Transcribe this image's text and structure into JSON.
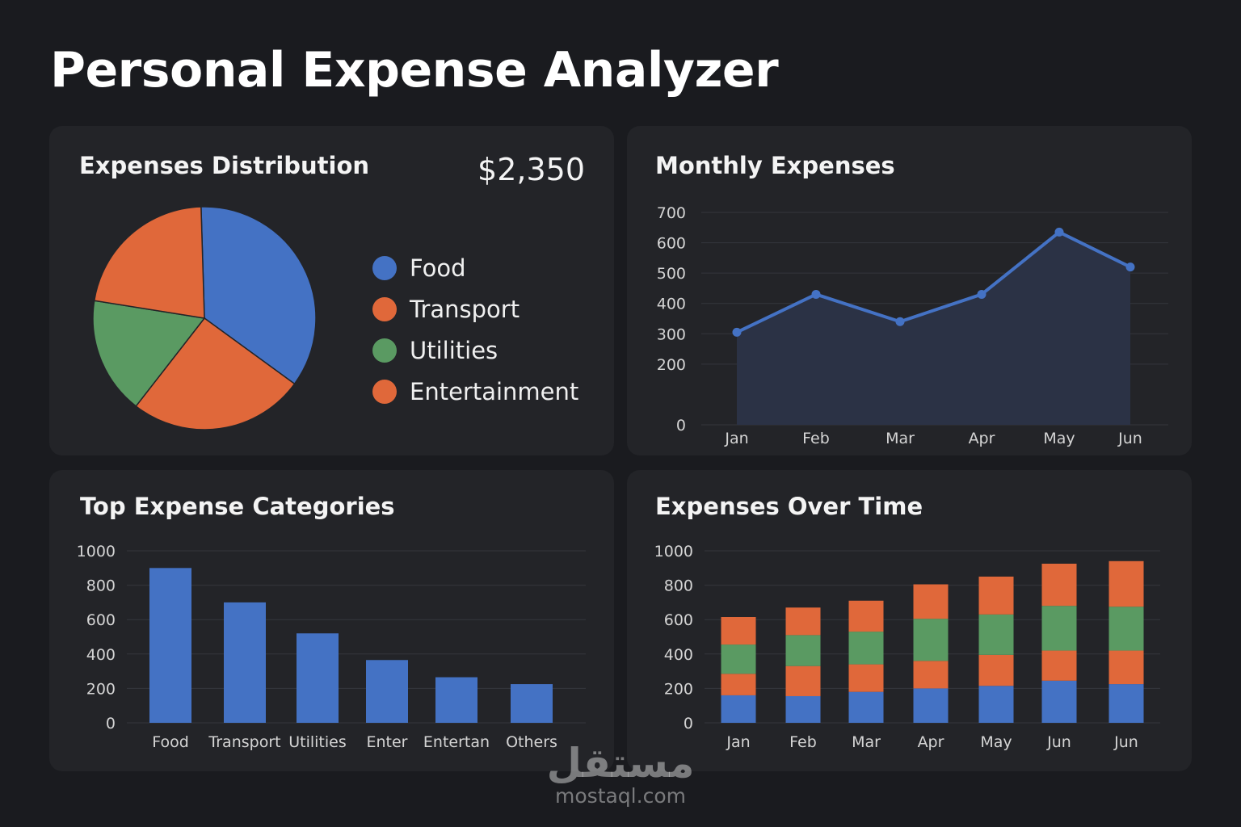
{
  "page": {
    "title": "Personal Expense Analyzer"
  },
  "distribution": {
    "title": "Expenses Distribution",
    "total": "$2,350",
    "legend": [
      {
        "label": "Food",
        "color": "#4472c4"
      },
      {
        "label": "Transport",
        "color": "#e0683a"
      },
      {
        "label": "Utilities",
        "color": "#5a9a62"
      },
      {
        "label": "Entertainment",
        "color": "#e0683a"
      }
    ]
  },
  "monthly": {
    "title": "Monthly Expenses"
  },
  "top_categories": {
    "title": "Top Expense Categories"
  },
  "over_time": {
    "title": "Expenses Over Time"
  },
  "watermark": {
    "arabic": "مستقل",
    "url": "mostaql.com"
  },
  "chart_data": [
    {
      "id": "distribution",
      "type": "pie",
      "title": "Expenses Distribution",
      "slices": [
        {
          "label": "Food",
          "value": 35.5,
          "color": "#4472c4"
        },
        {
          "label": "Entertainment",
          "value": 25.5,
          "color": "#e0683a"
        },
        {
          "label": "Utilities",
          "value": 17,
          "color": "#5a9a62"
        },
        {
          "label": "Transport",
          "value": 22,
          "color": "#e0683a"
        }
      ]
    },
    {
      "id": "monthly",
      "type": "area",
      "title": "Monthly Expenses",
      "categories": [
        "Jan",
        "Feb",
        "Mar",
        "Apr",
        "May",
        "Jun"
      ],
      "values": [
        305,
        430,
        340,
        430,
        635,
        520
      ],
      "ylim": [
        0,
        700
      ],
      "yticks": [
        0,
        200,
        300,
        400,
        500,
        600,
        700
      ],
      "color": "#4472c4",
      "grid": true
    },
    {
      "id": "top_categories",
      "type": "bar",
      "title": "Top Expense Categories",
      "categories": [
        "Food",
        "Transport",
        "Utilities",
        "Enter",
        "Entertan",
        "Others"
      ],
      "values": [
        900,
        700,
        520,
        365,
        265,
        225
      ],
      "ylim": [
        0,
        1000
      ],
      "yticks": [
        0,
        200,
        400,
        600,
        800,
        1000
      ],
      "color": "#4472c4",
      "grid": true
    },
    {
      "id": "over_time",
      "type": "bar",
      "stacked": true,
      "title": "Expenses Over Time",
      "categories": [
        "Jan",
        "Feb",
        "Mar",
        "Apr",
        "May",
        "Jun",
        "Jun"
      ],
      "ylim": [
        0,
        1000
      ],
      "yticks": [
        0,
        200,
        400,
        600,
        800,
        1000
      ],
      "grid": true,
      "series": [
        {
          "color": "#4472c4",
          "values": [
            160,
            155,
            180,
            200,
            215,
            245,
            225
          ]
        },
        {
          "color": "#e0683a",
          "values": [
            125,
            175,
            160,
            160,
            180,
            175,
            195
          ]
        },
        {
          "color": "#5a9a62",
          "values": [
            170,
            180,
            190,
            245,
            235,
            260,
            255
          ]
        },
        {
          "color": "#e0683a",
          "values": [
            160,
            160,
            180,
            200,
            220,
            245,
            265
          ]
        }
      ]
    }
  ]
}
